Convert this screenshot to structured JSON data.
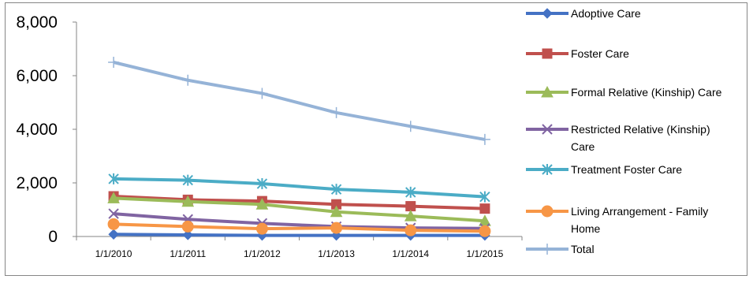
{
  "chart_data": {
    "type": "line",
    "title": "",
    "xlabel": "",
    "ylabel": "",
    "categories": [
      "1/1/2010",
      "1/1/2011",
      "1/1/2012",
      "1/1/2013",
      "1/1/2014",
      "1/1/2015"
    ],
    "yticks": [
      "0",
      "2,000",
      "4,000",
      "6,000",
      "8,000"
    ],
    "ylim": [
      0,
      8000
    ],
    "grid": "none",
    "legend": "right",
    "series": [
      {
        "name": "Adoptive Care",
        "color": "#4472C4",
        "marker": "diamond",
        "values": [
          80,
          60,
          40,
          40,
          40,
          40
        ]
      },
      {
        "name": "Foster Care",
        "color": "#C0504D",
        "marker": "square",
        "values": [
          1500,
          1370,
          1320,
          1200,
          1130,
          1040
        ]
      },
      {
        "name": "Formal Relative (Kinship) Care",
        "color": "#9BBB59",
        "marker": "triangle",
        "values": [
          1430,
          1300,
          1200,
          920,
          760,
          580
        ]
      },
      {
        "name": "Restricted Relative (Kinship) Care",
        "color": "#8064A2",
        "marker": "x",
        "values": [
          850,
          640,
          490,
          370,
          320,
          300
        ]
      },
      {
        "name": "Treatment Foster Care",
        "color": "#4BACC6",
        "marker": "star",
        "values": [
          2150,
          2100,
          1970,
          1760,
          1650,
          1480
        ]
      },
      {
        "name": "Living Arrangement - Family Home",
        "color": "#F79646",
        "marker": "circle",
        "values": [
          460,
          370,
          290,
          320,
          230,
          200
        ]
      },
      {
        "name": "Total",
        "color": "#95B3D7",
        "marker": "plus",
        "values": [
          6500,
          5830,
          5340,
          4620,
          4110,
          3620
        ]
      }
    ]
  }
}
